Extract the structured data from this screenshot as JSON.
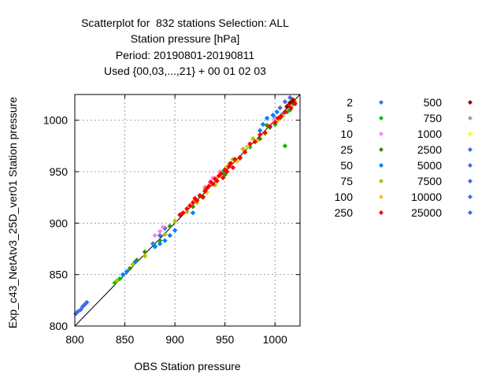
{
  "chart_data": {
    "type": "scatter",
    "title_lines": [
      "Scatterplot for  832 stations Selection: ALL",
      "Station pressure [hPa]",
      "Period: 20190801-20190811",
      "Used {00,03,...,21} + 00 01 02 03"
    ],
    "xlabel": "OBS Station pressure",
    "ylabel": "Exp_c43_NetAtv3_25D_ver01 Station pressure",
    "xlim": [
      800,
      1025
    ],
    "ylim": [
      800,
      1025
    ],
    "xticks": [
      800,
      850,
      900,
      950,
      1000
    ],
    "yticks": [
      800,
      850,
      900,
      950,
      1000
    ],
    "grid": true,
    "diagonal_line": true,
    "legend_placement": "right",
    "legend": [
      {
        "label": "2",
        "color": "#3a6ee8"
      },
      {
        "label": "5",
        "color": "#00c000"
      },
      {
        "label": "10",
        "color": "#ff80ff"
      },
      {
        "label": "25",
        "color": "#3c8a00"
      },
      {
        "label": "50",
        "color": "#0080ff"
      },
      {
        "label": "75",
        "color": "#b0c000"
      },
      {
        "label": "100",
        "color": "#ffc020"
      },
      {
        "label": "250",
        "color": "#ff0000"
      },
      {
        "label": "500",
        "color": "#900000"
      },
      {
        "label": "750",
        "color": "#a0a0a0"
      },
      {
        "label": "1000",
        "color": "#ffff00"
      },
      {
        "label": "2500",
        "color": "#3a6ee8"
      },
      {
        "label": "5000",
        "color": "#3a6ee8"
      },
      {
        "label": "7500",
        "color": "#3a6ee8"
      },
      {
        "label": "10000",
        "color": "#3a6ee8"
      },
      {
        "label": "25000",
        "color": "#3a6ee8"
      }
    ],
    "series": [
      {
        "color": "#3a6ee8",
        "points": [
          [
            801,
            812
          ],
          [
            803,
            814
          ],
          [
            806,
            816
          ],
          [
            808,
            819
          ],
          [
            810,
            821
          ],
          [
            812,
            823
          ],
          [
            878,
            880
          ],
          [
            885,
            888
          ],
          [
            890,
            895
          ],
          [
            1005,
            1012
          ],
          [
            1010,
            1018
          ],
          [
            1015,
            1022
          ],
          [
            1000,
            1002
          ],
          [
            1008,
            1006
          ]
        ]
      },
      {
        "color": "#00c000",
        "points": [
          [
            840,
            842
          ],
          [
            845,
            846
          ],
          [
            880,
            878
          ],
          [
            925,
            926
          ],
          [
            948,
            950
          ],
          [
            960,
            962
          ],
          [
            975,
            974
          ],
          [
            995,
            993
          ],
          [
            1000,
            996
          ],
          [
            1010,
            975
          ],
          [
            1012,
            1008
          ]
        ]
      },
      {
        "color": "#ff80ff",
        "points": [
          [
            880,
            888
          ],
          [
            885,
            892
          ],
          [
            888,
            896
          ],
          [
            930,
            935
          ],
          [
            935,
            940
          ],
          [
            938,
            944
          ],
          [
            945,
            950
          ],
          [
            1000,
            1001
          ]
        ]
      },
      {
        "color": "#3c8a00",
        "points": [
          [
            855,
            856
          ],
          [
            862,
            864
          ],
          [
            870,
            872
          ],
          [
            885,
            883
          ],
          [
            895,
            897
          ],
          [
            905,
            908
          ],
          [
            918,
            916
          ],
          [
            928,
            926
          ],
          [
            950,
            947
          ],
          [
            955,
            958
          ],
          [
            965,
            963
          ],
          [
            985,
            982
          ],
          [
            992,
            995
          ],
          [
            1005,
            1002
          ],
          [
            1015,
            1010
          ],
          [
            1018,
            1016
          ]
        ]
      },
      {
        "color": "#0080ff",
        "points": [
          [
            848,
            850
          ],
          [
            852,
            853
          ],
          [
            860,
            862
          ],
          [
            880,
            877
          ],
          [
            885,
            880
          ],
          [
            890,
            883
          ],
          [
            895,
            888
          ],
          [
            900,
            893
          ],
          [
            918,
            910
          ],
          [
            985,
            990
          ],
          [
            988,
            996
          ],
          [
            992,
            1002
          ],
          [
            998,
            1005
          ],
          [
            1002,
            1008
          ]
        ]
      },
      {
        "color": "#b0c000",
        "points": [
          [
            842,
            844
          ],
          [
            858,
            860
          ],
          [
            870,
            868
          ],
          [
            890,
            889
          ],
          [
            900,
            902
          ],
          [
            912,
            911
          ],
          [
            922,
            920
          ],
          [
            930,
            933
          ],
          [
            940,
            937
          ],
          [
            958,
            962
          ],
          [
            968,
            972
          ],
          [
            978,
            982
          ],
          [
            990,
            987
          ],
          [
            1002,
            999
          ],
          [
            1012,
            1014
          ],
          [
            1020,
            1018
          ]
        ]
      },
      {
        "color": "#ffc020",
        "points": [
          [
            920,
            922
          ],
          [
            932,
            930
          ],
          [
            942,
            944
          ],
          [
            952,
            955
          ],
          [
            962,
            960
          ],
          [
            972,
            974
          ],
          [
            982,
            980
          ],
          [
            1003,
            1000
          ],
          [
            1008,
            1004
          ]
        ]
      },
      {
        "color": "#ff0000",
        "points": [
          [
            905,
            908
          ],
          [
            908,
            910
          ],
          [
            912,
            914
          ],
          [
            915,
            917
          ],
          [
            918,
            920
          ],
          [
            920,
            924
          ],
          [
            922,
            922
          ],
          [
            925,
            927
          ],
          [
            928,
            925
          ],
          [
            930,
            931
          ],
          [
            932,
            934
          ],
          [
            934,
            936
          ],
          [
            936,
            940
          ],
          [
            938,
            938
          ],
          [
            940,
            943
          ],
          [
            942,
            941
          ],
          [
            944,
            946
          ],
          [
            946,
            948
          ],
          [
            948,
            944
          ],
          [
            950,
            952
          ],
          [
            952,
            950
          ],
          [
            954,
            955
          ],
          [
            956,
            958
          ],
          [
            958,
            954
          ],
          [
            960,
            962
          ],
          [
            965,
            964
          ],
          [
            970,
            969
          ],
          [
            975,
            977
          ],
          [
            980,
            979
          ],
          [
            985,
            986
          ],
          [
            990,
            988
          ],
          [
            995,
            994
          ],
          [
            1000,
            998
          ],
          [
            1003,
            1002
          ],
          [
            1006,
            1004
          ],
          [
            1010,
            1008
          ],
          [
            1013,
            1014
          ],
          [
            1016,
            1012
          ],
          [
            1018,
            1020
          ],
          [
            1020,
            1016
          ]
        ]
      },
      {
        "color": "#900000",
        "points": [
          [
            1012,
            1013
          ],
          [
            1015,
            1017
          ],
          [
            1018,
            1019
          ]
        ]
      }
    ]
  }
}
